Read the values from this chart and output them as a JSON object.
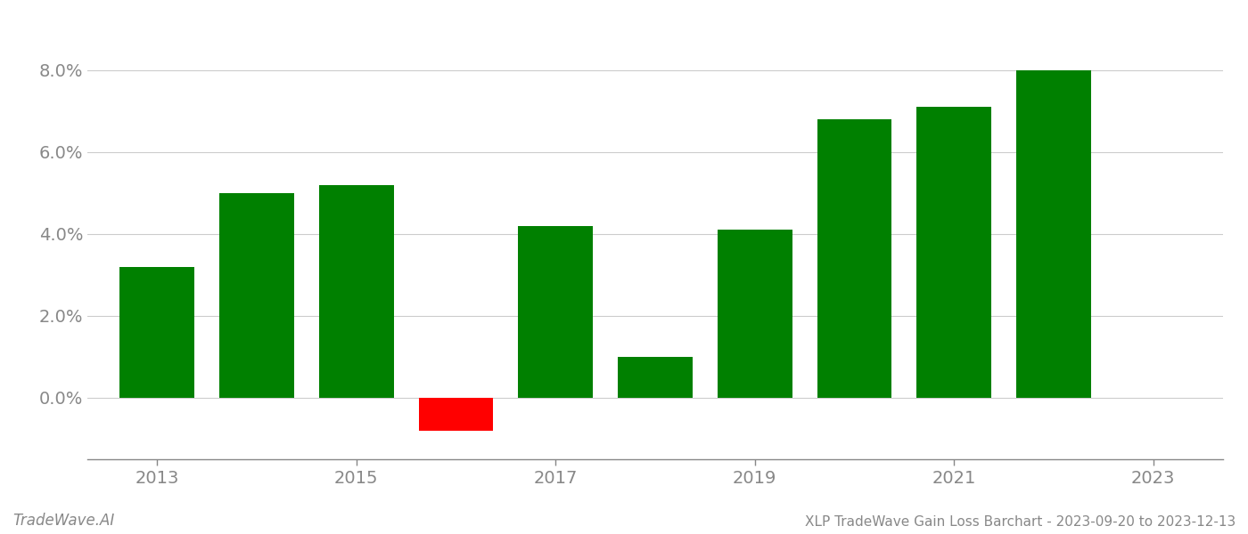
{
  "years": [
    2013,
    2014,
    2015,
    2016,
    2017,
    2018,
    2019,
    2020,
    2021,
    2022
  ],
  "values": [
    0.032,
    0.05,
    0.052,
    -0.008,
    0.042,
    0.01,
    0.041,
    0.068,
    0.071,
    0.08
  ],
  "bar_colors": [
    "#008000",
    "#008000",
    "#008000",
    "#ff0000",
    "#008000",
    "#008000",
    "#008000",
    "#008000",
    "#008000",
    "#008000"
  ],
  "title": "XLP TradeWave Gain Loss Barchart - 2023-09-20 to 2023-12-13",
  "watermark": "TradeWave.AI",
  "ylim": [
    -0.015,
    0.088
  ],
  "yticks": [
    0.0,
    0.02,
    0.04,
    0.06,
    0.08
  ],
  "xlim": [
    2012.3,
    2023.7
  ],
  "xticks": [
    2013,
    2015,
    2017,
    2019,
    2021,
    2023
  ],
  "xtick_labels": [
    "2013",
    "2015",
    "2017",
    "2019",
    "2021",
    "2023"
  ],
  "background_color": "#ffffff",
  "grid_color": "#cccccc",
  "bar_width": 0.75
}
